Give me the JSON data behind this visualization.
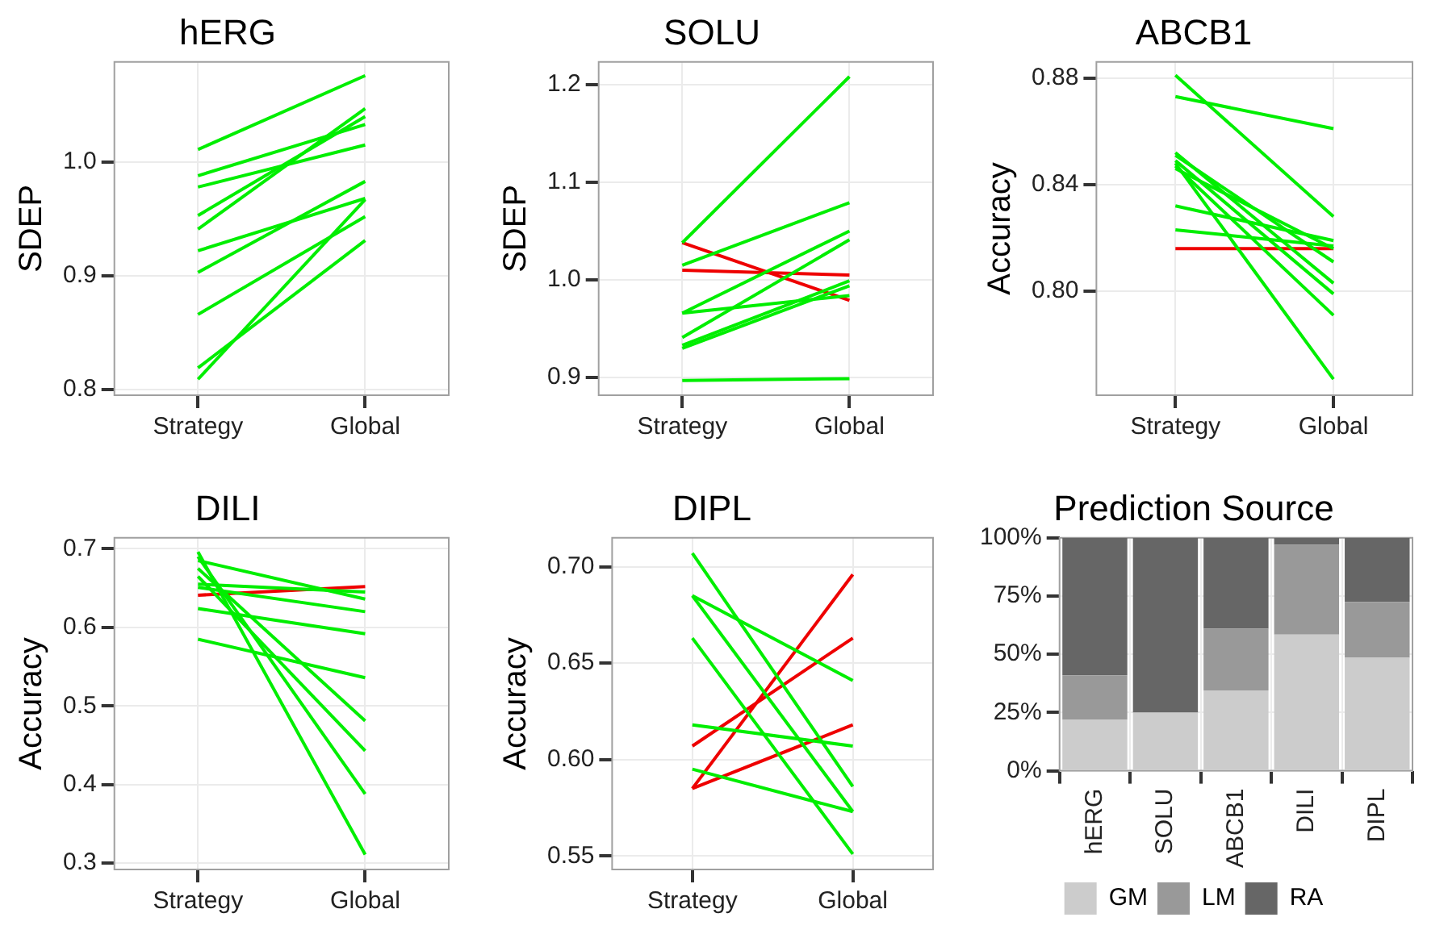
{
  "chart_data": [
    {
      "type": "line",
      "title": "hERG",
      "ylabel": "SDEP",
      "categories": [
        "Strategy",
        "Global"
      ],
      "ylim": [
        0.795,
        1.088
      ],
      "yticks": [
        {
          "value": 0.8,
          "label": "0.8"
        },
        {
          "value": 0.9,
          "label": "0.9"
        },
        {
          "value": 1.0,
          "label": "1.0"
        }
      ],
      "grid": true,
      "legend": false,
      "series": [
        {
          "color": "#00ee00",
          "values": [
            1.011,
            1.076
          ]
        },
        {
          "color": "#00ee00",
          "values": [
            0.988,
            1.033
          ]
        },
        {
          "color": "#00ee00",
          "values": [
            0.978,
            1.015
          ]
        },
        {
          "color": "#00ee00",
          "values": [
            0.953,
            1.04
          ]
        },
        {
          "color": "#00ee00",
          "values": [
            0.941,
            1.047
          ]
        },
        {
          "color": "#00ee00",
          "values": [
            0.922,
            0.968
          ]
        },
        {
          "color": "#00ee00",
          "values": [
            0.903,
            0.983
          ]
        },
        {
          "color": "#00ee00",
          "values": [
            0.866,
            0.952
          ]
        },
        {
          "color": "#00ee00",
          "values": [
            0.819,
            0.931
          ]
        },
        {
          "color": "#00ee00",
          "values": [
            0.809,
            0.967
          ]
        }
      ]
    },
    {
      "type": "line",
      "title": "SOLU",
      "ylabel": "SDEP",
      "categories": [
        "Strategy",
        "Global"
      ],
      "ylim": [
        0.882,
        1.223
      ],
      "yticks": [
        {
          "value": 0.9,
          "label": "0.9"
        },
        {
          "value": 1.0,
          "label": "1.0"
        },
        {
          "value": 1.1,
          "label": "1.1"
        },
        {
          "value": 1.2,
          "label": "1.2"
        }
      ],
      "grid": true,
      "legend": false,
      "series": [
        {
          "color": "#00ee00",
          "values": [
            1.038,
            1.208
          ]
        },
        {
          "color": "#00ee00",
          "values": [
            1.015,
            1.079
          ]
        },
        {
          "color": "#00ee00",
          "values": [
            0.966,
            1.05
          ]
        },
        {
          "color": "#00ee00",
          "values": [
            0.966,
            0.984
          ]
        },
        {
          "color": "#00ee00",
          "values": [
            0.941,
            1.041
          ]
        },
        {
          "color": "#00ee00",
          "values": [
            0.933,
            0.999
          ]
        },
        {
          "color": "#00ee00",
          "values": [
            0.93,
            0.994
          ]
        },
        {
          "color": "#00ee00",
          "values": [
            0.897,
            0.899
          ]
        },
        {
          "color": "#ee0000",
          "values": [
            1.038,
            0.979
          ]
        },
        {
          "color": "#ee0000",
          "values": [
            1.01,
            1.005
          ]
        }
      ]
    },
    {
      "type": "line",
      "title": "ABCB1",
      "ylabel": "Accuracy",
      "categories": [
        "Strategy",
        "Global"
      ],
      "ylim": [
        0.761,
        0.886
      ],
      "yticks": [
        {
          "value": 0.8,
          "label": "0.80"
        },
        {
          "value": 0.84,
          "label": "0.84"
        },
        {
          "value": 0.88,
          "label": "0.88"
        }
      ],
      "grid": true,
      "legend": false,
      "series": [
        {
          "color": "#00ee00",
          "values": [
            0.881,
            0.828
          ]
        },
        {
          "color": "#00ee00",
          "values": [
            0.873,
            0.861
          ]
        },
        {
          "color": "#00ee00",
          "values": [
            0.852,
            0.803
          ]
        },
        {
          "color": "#00ee00",
          "values": [
            0.851,
            0.811
          ]
        },
        {
          "color": "#00ee00",
          "values": [
            0.849,
            0.799
          ]
        },
        {
          "color": "#00ee00",
          "values": [
            0.848,
            0.767
          ]
        },
        {
          "color": "#00ee00",
          "values": [
            0.847,
            0.791
          ]
        },
        {
          "color": "#00ee00",
          "values": [
            0.846,
            0.816
          ]
        },
        {
          "color": "#00ee00",
          "values": [
            0.832,
            0.819
          ]
        },
        {
          "color": "#00ee00",
          "values": [
            0.823,
            0.817
          ]
        },
        {
          "color": "#ee0000",
          "values": [
            0.816,
            0.816
          ]
        }
      ]
    },
    {
      "type": "line",
      "title": "DILI",
      "ylabel": "Accuracy",
      "categories": [
        "Strategy",
        "Global"
      ],
      "ylim": [
        0.292,
        0.714
      ],
      "yticks": [
        {
          "value": 0.3,
          "label": "0.3"
        },
        {
          "value": 0.4,
          "label": "0.4"
        },
        {
          "value": 0.5,
          "label": "0.5"
        },
        {
          "value": 0.6,
          "label": "0.6"
        },
        {
          "value": 0.7,
          "label": "0.7"
        }
      ],
      "grid": true,
      "legend": false,
      "series": [
        {
          "color": "#00ee00",
          "values": [
            0.696,
            0.311
          ]
        },
        {
          "color": "#00ee00",
          "values": [
            0.69,
            0.388
          ]
        },
        {
          "color": "#00ee00",
          "values": [
            0.685,
            0.636
          ]
        },
        {
          "color": "#00ee00",
          "values": [
            0.675,
            0.481
          ]
        },
        {
          "color": "#00ee00",
          "values": [
            0.665,
            0.443
          ]
        },
        {
          "color": "#00ee00",
          "values": [
            0.655,
            0.645
          ]
        },
        {
          "color": "#00ee00",
          "values": [
            0.651,
            0.62
          ]
        },
        {
          "color": "#00ee00",
          "values": [
            0.624,
            0.592
          ]
        },
        {
          "color": "#00ee00",
          "values": [
            0.585,
            0.536
          ]
        },
        {
          "color": "#ee0000",
          "values": [
            0.641,
            0.652
          ]
        }
      ]
    },
    {
      "type": "line",
      "title": "DIPL",
      "ylabel": "Accuracy",
      "categories": [
        "Strategy",
        "Global"
      ],
      "ylim": [
        0.543,
        0.715
      ],
      "yticks": [
        {
          "value": 0.55,
          "label": "0.55"
        },
        {
          "value": 0.6,
          "label": "0.60"
        },
        {
          "value": 0.65,
          "label": "0.65"
        },
        {
          "value": 0.7,
          "label": "0.70"
        }
      ],
      "grid": true,
      "legend": false,
      "series": [
        {
          "color": "#00ee00",
          "values": [
            0.707,
            0.586
          ]
        },
        {
          "color": "#00ee00",
          "values": [
            0.685,
            0.641
          ]
        },
        {
          "color": "#00ee00",
          "values": [
            0.685,
            0.573
          ]
        },
        {
          "color": "#00ee00",
          "values": [
            0.663,
            0.551
          ]
        },
        {
          "color": "#00ee00",
          "values": [
            0.618,
            0.607
          ]
        },
        {
          "color": "#00ee00",
          "values": [
            0.595,
            0.573
          ]
        },
        {
          "color": "#ee0000",
          "values": [
            0.607,
            0.663
          ]
        },
        {
          "color": "#ee0000",
          "values": [
            0.585,
            0.696
          ]
        },
        {
          "color": "#ee0000",
          "values": [
            0.585,
            0.618
          ]
        }
      ]
    },
    {
      "type": "bar",
      "title": "Prediction Source",
      "categories": [
        "hERG",
        "SOLU",
        "ABCB1",
        "DILI",
        "DIPL"
      ],
      "stacked": true,
      "ylim": [
        0,
        100
      ],
      "yticks": [
        {
          "value": 0,
          "label": "0%"
        },
        {
          "value": 25,
          "label": "25%"
        },
        {
          "value": 50,
          "label": "50%"
        },
        {
          "value": 75,
          "label": "75%"
        },
        {
          "value": 100,
          "label": "100%"
        }
      ],
      "grid": true,
      "legend": "bottom",
      "series": [
        {
          "name": "GM",
          "color": "#cccccc",
          "values": [
            22,
            25,
            34.5,
            58.5,
            48.5
          ]
        },
        {
          "name": "LM",
          "color": "#999999",
          "values": [
            19,
            0,
            26.5,
            38.5,
            24
          ]
        },
        {
          "name": "RA",
          "color": "#666666",
          "values": [
            59,
            75,
            39,
            3,
            27.5
          ]
        }
      ]
    }
  ]
}
